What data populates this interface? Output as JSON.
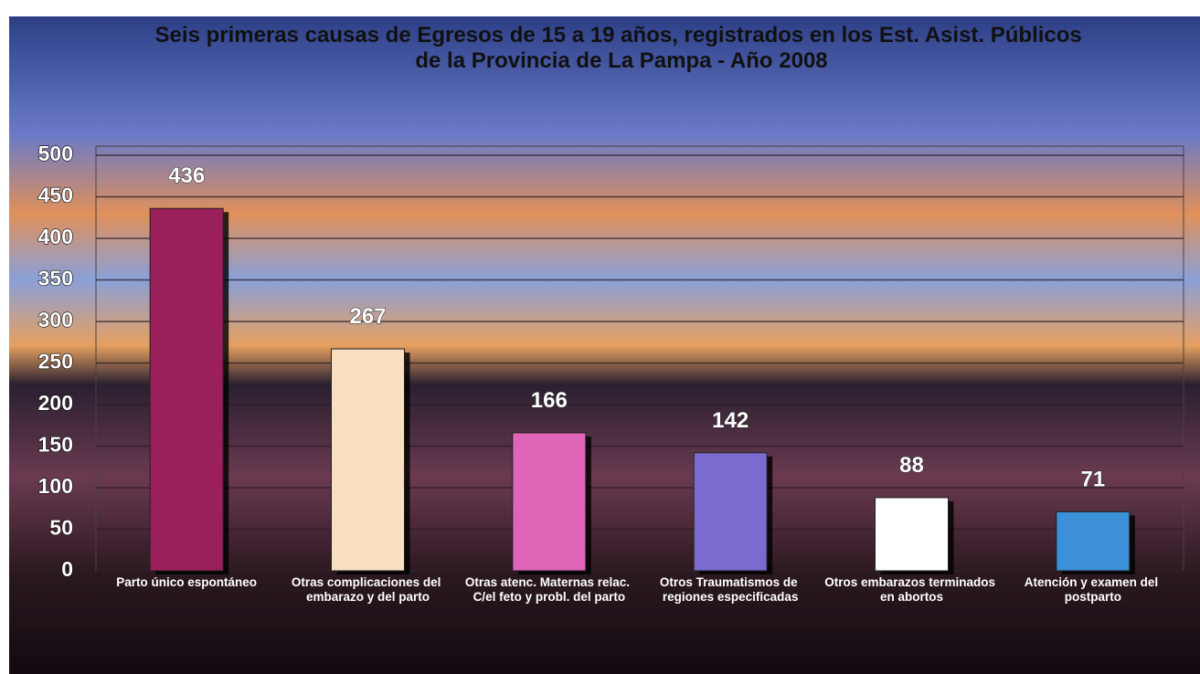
{
  "chart_data": {
    "type": "bar",
    "title": "Seis primeras causas de Egresos de 15 a 19 años, registrados en los Est. Asist. Públicos de la Provincia de La Pampa - Año 2008",
    "categories": [
      "Parto único espontáneo",
      "Otras complicaciones del embarazo y del parto",
      "Otras atenc. Maternas relac. C/el feto y probl. del parto",
      "Otros Traumatismos de regiones especificadas",
      "Otros embarazos terminados en abortos",
      "Atención y examen del postparto"
    ],
    "values": [
      436,
      267,
      166,
      142,
      88,
      71
    ],
    "colors": [
      "#9b1f5a",
      "#f8dfc0",
      "#e064b8",
      "#7b6ad0",
      "#ffffff",
      "#3c90d8"
    ],
    "ylim": [
      0,
      500
    ],
    "yticks": [
      0,
      50,
      100,
      150,
      200,
      250,
      300,
      350,
      400,
      450,
      500
    ],
    "grid": true
  }
}
